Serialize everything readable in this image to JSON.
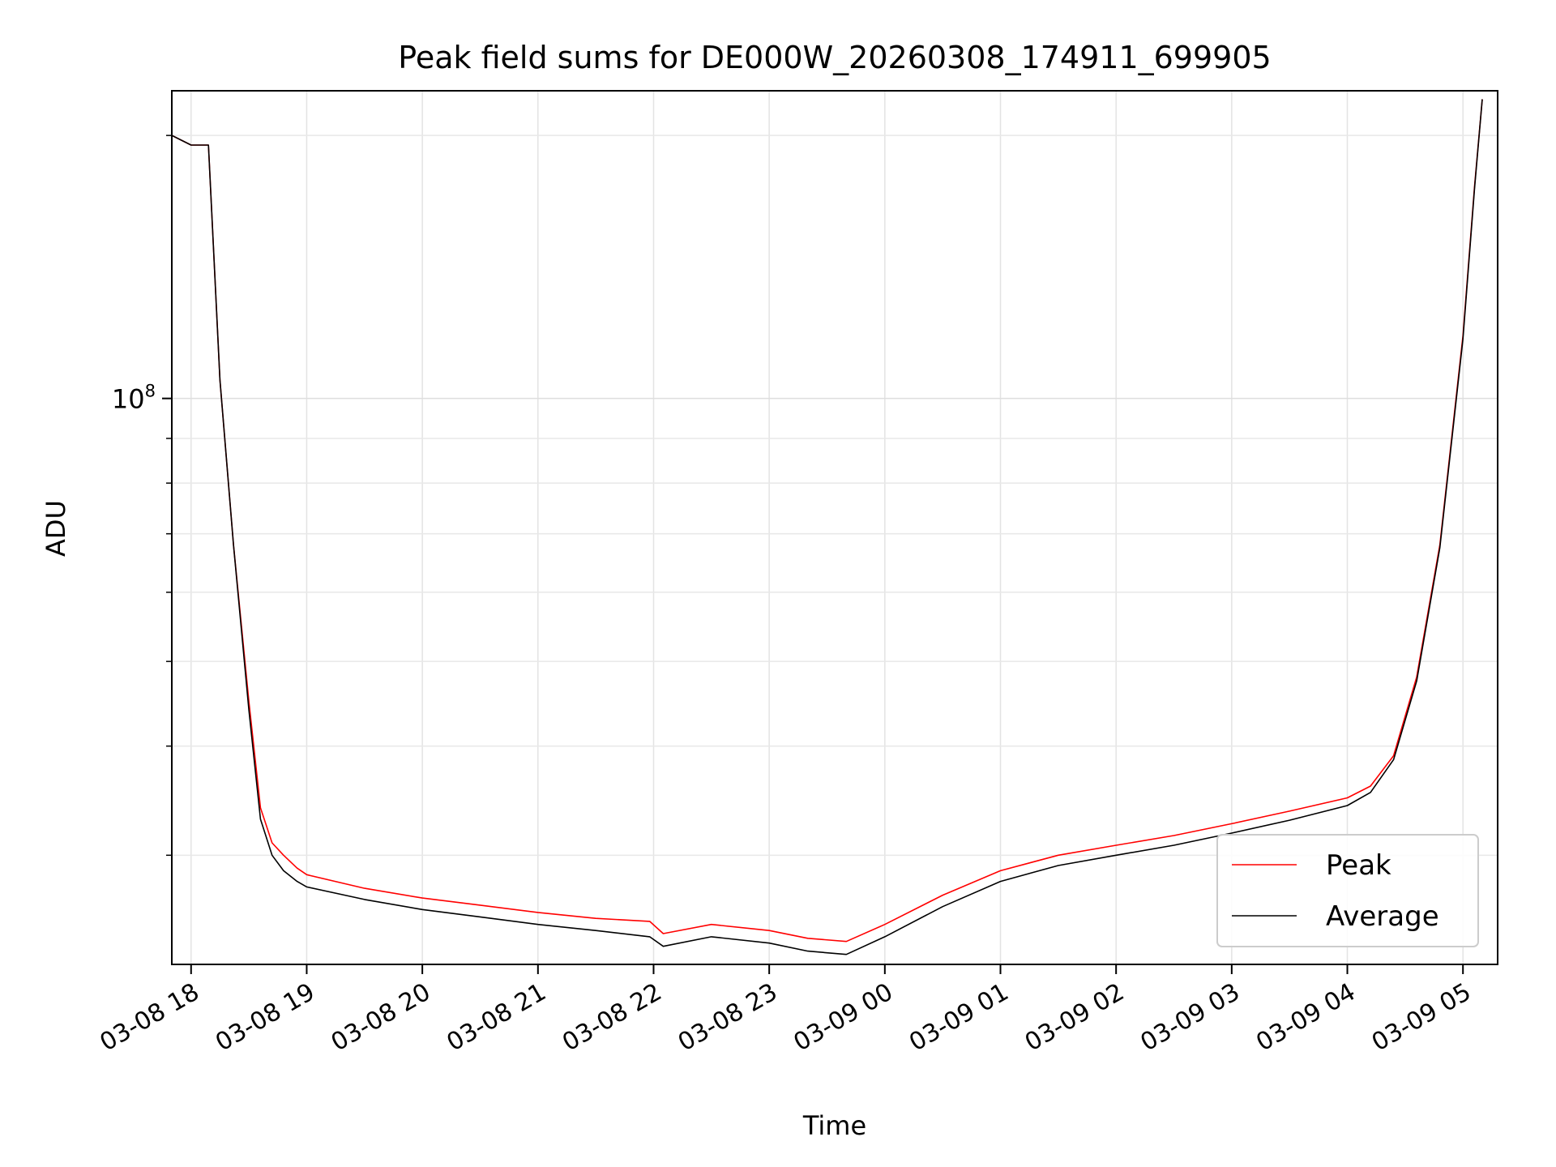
{
  "chart_data": {
    "type": "line",
    "title": "Peak field sums for DE000W_20260308_174911_699905",
    "xlabel": "Time",
    "ylabel": "ADU",
    "y_scale": "log",
    "ylim": [
      22500000,
      225000000
    ],
    "xlim": [
      "2026-03-08 17:50",
      "2026-03-09 05:18"
    ],
    "x_ticks": [
      "03-08 18",
      "03-08 19",
      "03-08 20",
      "03-08 21",
      "03-08 22",
      "03-08 23",
      "03-09 00",
      "03-09 01",
      "03-09 02",
      "03-09 03",
      "03-09 04",
      "03-09 05"
    ],
    "x_tick_times": [
      "2026-03-08 18:00",
      "2026-03-08 19:00",
      "2026-03-08 20:00",
      "2026-03-08 21:00",
      "2026-03-08 22:00",
      "2026-03-08 23:00",
      "2026-03-09 00:00",
      "2026-03-09 01:00",
      "2026-03-09 02:00",
      "2026-03-09 03:00",
      "2026-03-09 04:00",
      "2026-03-09 05:00"
    ],
    "y_major_ticks": [
      {
        "value": 100000000,
        "label": "10^8"
      }
    ],
    "y_minor_ticks": [
      30000000,
      40000000,
      50000000,
      60000000,
      70000000,
      80000000,
      90000000,
      200000000
    ],
    "grid": true,
    "legend_position": "lower-right",
    "series": [
      {
        "name": "Peak",
        "color": "#ff0000",
        "x": [
          "2026-03-08 17:50",
          "2026-03-08 18:00",
          "2026-03-08 18:09",
          "2026-03-08 18:15",
          "2026-03-08 18:22",
          "2026-03-08 18:30",
          "2026-03-08 18:36",
          "2026-03-08 18:42",
          "2026-03-08 18:48",
          "2026-03-08 18:55",
          "2026-03-08 19:00",
          "2026-03-08 19:30",
          "2026-03-08 20:00",
          "2026-03-08 20:30",
          "2026-03-08 21:00",
          "2026-03-08 21:30",
          "2026-03-08 21:58",
          "2026-03-08 22:05",
          "2026-03-08 22:30",
          "2026-03-08 23:00",
          "2026-03-08 23:20",
          "2026-03-08 23:40",
          "2026-03-09 00:00",
          "2026-03-09 00:30",
          "2026-03-09 01:00",
          "2026-03-09 01:30",
          "2026-03-09 02:00",
          "2026-03-09 02:30",
          "2026-03-09 03:00",
          "2026-03-09 03:30",
          "2026-03-09 04:00",
          "2026-03-09 04:12",
          "2026-03-09 04:24",
          "2026-03-09 04:36",
          "2026-03-09 04:48",
          "2026-03-09 05:00",
          "2026-03-09 05:06",
          "2026-03-09 05:10"
        ],
        "y": [
          200000000,
          195000000,
          195000000,
          105000000,
          68000000,
          45000000,
          34000000,
          31000000,
          30000000,
          29000000,
          28500000,
          27500000,
          26800000,
          26300000,
          25800000,
          25400000,
          25200000,
          24400000,
          25000000,
          24600000,
          24100000,
          23900000,
          25000000,
          27000000,
          28800000,
          30000000,
          30800000,
          31600000,
          32600000,
          33700000,
          34900000,
          36000000,
          39000000,
          48000000,
          68000000,
          118000000,
          175000000,
          220000000
        ]
      },
      {
        "name": "Average",
        "color": "#000000",
        "x": [
          "2026-03-08 17:50",
          "2026-03-08 18:00",
          "2026-03-08 18:09",
          "2026-03-08 18:15",
          "2026-03-08 18:22",
          "2026-03-08 18:30",
          "2026-03-08 18:36",
          "2026-03-08 18:42",
          "2026-03-08 18:48",
          "2026-03-08 18:55",
          "2026-03-08 19:00",
          "2026-03-08 19:30",
          "2026-03-08 20:00",
          "2026-03-08 20:30",
          "2026-03-08 21:00",
          "2026-03-08 21:30",
          "2026-03-08 21:58",
          "2026-03-08 22:05",
          "2026-03-08 22:30",
          "2026-03-08 23:00",
          "2026-03-08 23:20",
          "2026-03-08 23:40",
          "2026-03-09 00:00",
          "2026-03-09 00:30",
          "2026-03-09 01:00",
          "2026-03-09 01:30",
          "2026-03-09 02:00",
          "2026-03-09 02:30",
          "2026-03-09 03:00",
          "2026-03-09 03:30",
          "2026-03-09 04:00",
          "2026-03-09 04:12",
          "2026-03-09 04:24",
          "2026-03-09 04:36",
          "2026-03-09 04:48",
          "2026-03-09 05:00",
          "2026-03-09 05:06",
          "2026-03-09 05:10"
        ],
        "y": [
          200000000,
          195000000,
          195000000,
          105000000,
          68000000,
          44000000,
          33000000,
          30000000,
          28800000,
          28000000,
          27600000,
          26700000,
          26000000,
          25500000,
          25000000,
          24600000,
          24200000,
          23600000,
          24200000,
          23800000,
          23300000,
          23100000,
          24200000,
          26200000,
          28000000,
          29200000,
          30000000,
          30800000,
          31800000,
          32900000,
          34200000,
          35400000,
          38600000,
          47500000,
          67500000,
          117000000,
          174000000,
          220000000
        ]
      }
    ]
  }
}
